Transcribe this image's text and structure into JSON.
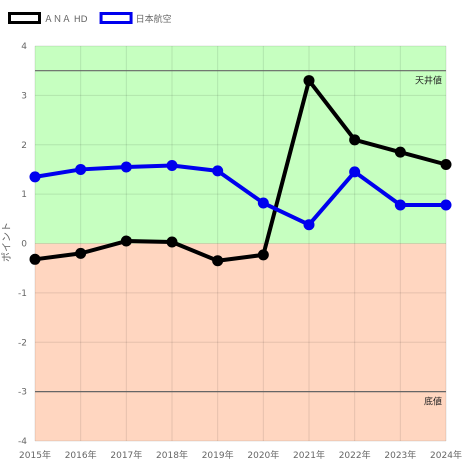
{
  "chart_data": {
    "type": "line",
    "categories": [
      "2015年",
      "2016年",
      "2017年",
      "2018年",
      "2019年",
      "2020年",
      "2021年",
      "2022年",
      "2023年",
      "2024年"
    ],
    "series": [
      {
        "name": "ＡＮＡ HD",
        "color": "#000000",
        "values": [
          -0.32,
          -0.2,
          0.05,
          0.03,
          -0.35,
          -0.23,
          3.3,
          2.1,
          1.85,
          1.6
        ]
      },
      {
        "name": "日本航空",
        "color": "#0000ee",
        "values": [
          1.35,
          1.5,
          1.55,
          1.58,
          1.47,
          0.82,
          0.38,
          1.45,
          0.78,
          0.78
        ]
      }
    ],
    "ylabel": "ポイント",
    "xlabel": "",
    "ylim": [
      -4,
      4
    ],
    "yticks": [
      4,
      3,
      2,
      1,
      0,
      -1,
      -2,
      -3,
      -4
    ],
    "grid": true,
    "legend_position": "top-left",
    "reference_lines": [
      {
        "label": "天井値",
        "value": 3.5
      },
      {
        "label": "底値",
        "value": -3
      }
    ],
    "bands": [
      {
        "from": 0,
        "to": 4,
        "color": "#c6ffc0"
      },
      {
        "from": -4,
        "to": 0,
        "color": "#ffd6c0"
      }
    ]
  }
}
